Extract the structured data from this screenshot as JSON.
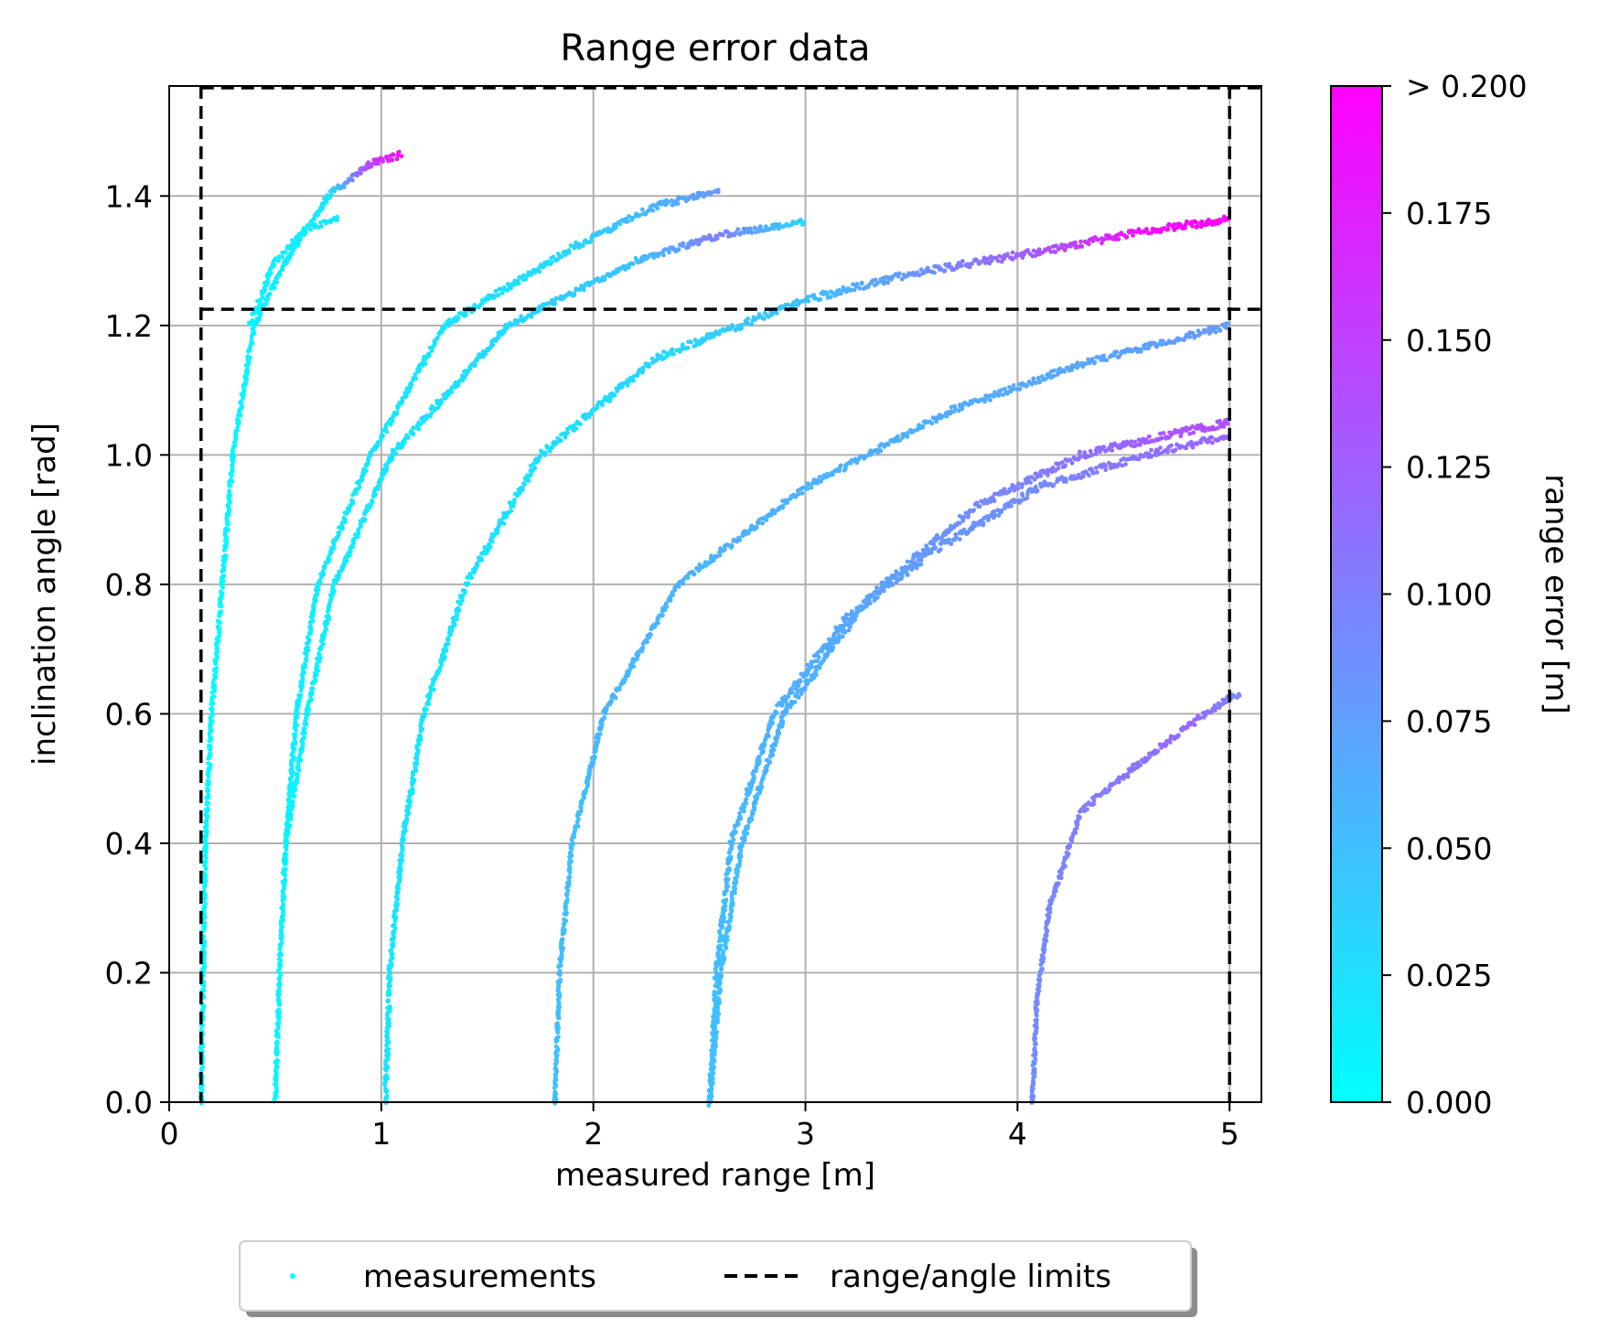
{
  "chart_data": {
    "type": "scatter",
    "title": "Range error data",
    "xlabel": "measured range [m]",
    "ylabel": "inclination angle [rad]",
    "xlim": [
      0,
      5.15
    ],
    "ylim": [
      0,
      1.57
    ],
    "xticks": [
      0,
      1,
      2,
      3,
      4,
      5
    ],
    "xtick_labels": [
      "0",
      "1",
      "2",
      "3",
      "4",
      "5"
    ],
    "yticks": [
      0.0,
      0.2,
      0.4,
      0.6,
      0.8,
      1.0,
      1.2,
      1.4
    ],
    "ytick_labels": [
      "0.0",
      "0.2",
      "0.4",
      "0.6",
      "0.8",
      "1.0",
      "1.2",
      "1.4"
    ],
    "grid": true,
    "legend_position": "bottom-center (outside)",
    "limits": {
      "range_min": 0.15,
      "range_max": 5.0,
      "angle_max": 1.225
    },
    "colorbar": {
      "label": "range error [m]",
      "colormap": "cool",
      "min": 0.0,
      "max": 0.2,
      "ticks": [
        0.0,
        0.025,
        0.05,
        0.075,
        0.1,
        0.125,
        0.15,
        0.175,
        0.2
      ],
      "tick_labels": [
        "0.000",
        "0.025",
        "0.050",
        "0.075",
        "0.100",
        "0.125",
        "0.150",
        "0.175",
        "> 0.200"
      ],
      "color_low": "#00ffff",
      "color_high": "#ff00ff"
    },
    "series": [
      {
        "distance": 0.15,
        "points": [
          [
            0.15,
            0.0
          ],
          [
            0.16,
            0.2
          ],
          [
            0.17,
            0.4
          ],
          [
            0.2,
            0.6
          ],
          [
            0.25,
            0.8
          ],
          [
            0.3,
            1.0
          ],
          [
            0.4,
            1.2
          ],
          [
            0.55,
            1.3
          ],
          [
            0.75,
            1.4
          ],
          [
            0.95,
            1.45
          ],
          [
            1.1,
            1.465
          ]
        ],
        "error": [
          0.005,
          0.005,
          0.005,
          0.005,
          0.005,
          0.008,
          0.01,
          0.015,
          0.02,
          0.15,
          0.19
        ],
        "spread": 0.012,
        "branch_points": [
          [
            0.38,
            1.2
          ],
          [
            0.5,
            1.3
          ],
          [
            0.65,
            1.35
          ],
          [
            0.8,
            1.365
          ]
        ],
        "branch_error": [
          0.01,
          0.012,
          0.015,
          0.02
        ]
      },
      {
        "distance": 0.5,
        "points": [
          [
            0.5,
            0.0
          ],
          [
            0.52,
            0.2
          ],
          [
            0.55,
            0.4
          ],
          [
            0.6,
            0.6
          ],
          [
            0.7,
            0.8
          ],
          [
            0.95,
            1.0
          ],
          [
            1.3,
            1.2
          ],
          [
            1.9,
            1.32
          ],
          [
            2.3,
            1.385
          ],
          [
            2.6,
            1.41
          ]
        ],
        "error": [
          0.01,
          0.01,
          0.01,
          0.012,
          0.015,
          0.02,
          0.02,
          0.03,
          0.06,
          0.08
        ],
        "spread": 0.012,
        "branch_points": [
          [
            0.55,
            0.4
          ],
          [
            0.65,
            0.6
          ],
          [
            0.78,
            0.8
          ],
          [
            1.05,
            1.0
          ],
          [
            1.6,
            1.2
          ],
          [
            2.2,
            1.3
          ],
          [
            2.6,
            1.34
          ],
          [
            3.0,
            1.36
          ]
        ],
        "branch_error": [
          0.01,
          0.012,
          0.015,
          0.02,
          0.03,
          0.05,
          0.1,
          0.03
        ]
      },
      {
        "distance": 1.02,
        "points": [
          [
            1.02,
            0.0
          ],
          [
            1.04,
            0.2
          ],
          [
            1.1,
            0.4
          ],
          [
            1.2,
            0.6
          ],
          [
            1.4,
            0.8
          ],
          [
            1.75,
            1.0
          ],
          [
            2.3,
            1.15
          ],
          [
            3.0,
            1.24
          ],
          [
            3.5,
            1.28
          ],
          [
            4.2,
            1.32
          ],
          [
            4.6,
            1.345
          ],
          [
            5.0,
            1.365
          ]
        ],
        "error": [
          0.02,
          0.02,
          0.02,
          0.02,
          0.022,
          0.025,
          0.03,
          0.05,
          0.08,
          0.14,
          0.19,
          0.2
        ],
        "spread": 0.014
      },
      {
        "distance": 1.82,
        "points": [
          [
            1.82,
            0.0
          ],
          [
            1.84,
            0.2
          ],
          [
            1.9,
            0.4
          ],
          [
            2.05,
            0.6
          ],
          [
            2.4,
            0.8
          ],
          [
            3.0,
            0.95
          ],
          [
            3.7,
            1.07
          ],
          [
            4.3,
            1.14
          ],
          [
            5.0,
            1.2
          ]
        ],
        "error": [
          0.05,
          0.05,
          0.05,
          0.055,
          0.06,
          0.06,
          0.065,
          0.07,
          0.08
        ],
        "spread": 0.012
      },
      {
        "distance": 2.55,
        "points": [
          [
            2.55,
            0.0
          ],
          [
            2.58,
            0.2
          ],
          [
            2.65,
            0.4
          ],
          [
            2.85,
            0.6
          ],
          [
            3.2,
            0.75
          ],
          [
            3.6,
            0.85
          ],
          [
            4.1,
            0.95
          ],
          [
            4.6,
            1.0
          ],
          [
            5.0,
            1.03
          ]
        ],
        "error": [
          0.05,
          0.05,
          0.055,
          0.06,
          0.07,
          0.08,
          0.09,
          0.11,
          0.12
        ],
        "spread": 0.014,
        "branch_points": [
          [
            2.55,
            0.0
          ],
          [
            2.6,
            0.2
          ],
          [
            2.7,
            0.4
          ],
          [
            2.9,
            0.6
          ],
          [
            3.3,
            0.78
          ],
          [
            3.8,
            0.92
          ],
          [
            4.3,
            1.0
          ],
          [
            4.7,
            1.03
          ],
          [
            5.0,
            1.05
          ]
        ],
        "branch_error": [
          0.05,
          0.05,
          0.055,
          0.06,
          0.07,
          0.09,
          0.11,
          0.13,
          0.14
        ]
      },
      {
        "distance": 4.07,
        "points": [
          [
            4.07,
            0.0
          ],
          [
            4.09,
            0.15
          ],
          [
            4.15,
            0.3
          ],
          [
            4.3,
            0.45
          ],
          [
            4.6,
            0.53
          ],
          [
            4.8,
            0.58
          ],
          [
            5.0,
            0.625
          ],
          [
            5.05,
            0.63
          ]
        ],
        "error": [
          0.09,
          0.09,
          0.095,
          0.1,
          0.11,
          0.12,
          0.1,
          0.09
        ],
        "spread": 0.012
      }
    ]
  },
  "legend": {
    "measurements_label": "measurements",
    "limits_label": "range/angle limits"
  }
}
